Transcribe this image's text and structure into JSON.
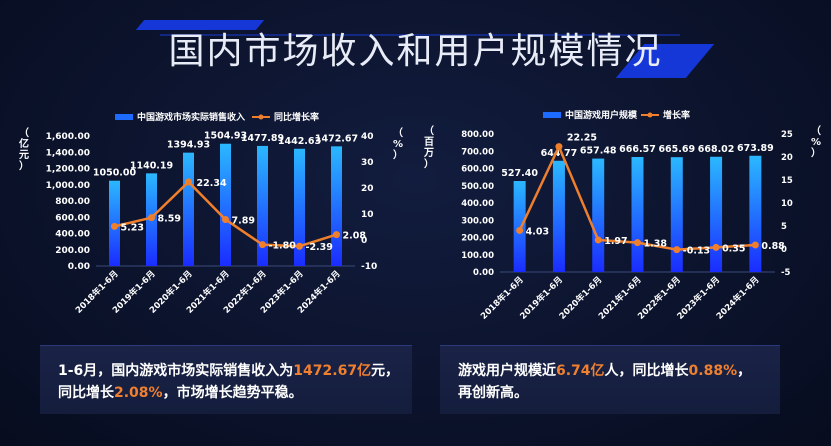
{
  "title": "国内市场收入和用户规模情况",
  "colors": {
    "bar": "#1e6bff",
    "line": "#f07f2c",
    "text": "#ffffff"
  },
  "chart_data": [
    {
      "type": "bar+line",
      "legend": [
        "中国游戏市场实际销售收入",
        "同比增长率"
      ],
      "ylabel_left": "（亿元）",
      "ylabel_right": "（%）",
      "categories": [
        "2018年1-6月",
        "2019年1-6月",
        "2020年1-6月",
        "2021年1-6月",
        "2022年1-6月",
        "2023年1-6月",
        "2024年1-6月"
      ],
      "bar_values": [
        1050.0,
        1140.19,
        1394.93,
        1504.93,
        1477.89,
        1442.63,
        1472.67
      ],
      "bar_labels": [
        "1050.00",
        "1140.19",
        "1394.93",
        "1504.93",
        "1477.89",
        "1442.63",
        "1472.67"
      ],
      "line_values": [
        5.23,
        8.59,
        22.34,
        7.89,
        -1.8,
        -2.39,
        2.08
      ],
      "line_labels": [
        "5.23",
        "8.59",
        "22.34",
        "7.89",
        "-1.80",
        "-2.39",
        "2.08"
      ],
      "ylim_left": [
        0,
        1600
      ],
      "yticks_left": [
        "0.00",
        "200.00",
        "400.00",
        "600.00",
        "800.00",
        "1,000.00",
        "1,200.00",
        "1,400.00",
        "1,600.00"
      ],
      "ylim_right": [
        -10,
        40
      ],
      "yticks_right": [
        "-10",
        "0",
        "10",
        "20",
        "30",
        "40"
      ]
    },
    {
      "type": "bar+line",
      "legend": [
        "中国游戏用户规模",
        "增长率"
      ],
      "ylabel_left": "（百万）",
      "ylabel_right": "（%）",
      "categories": [
        "2018年1-6月",
        "2019年1-6月",
        "2020年1-6月",
        "2021年1-6月",
        "2022年1-6月",
        "2023年1-6月",
        "2024年1-6月"
      ],
      "bar_values": [
        527.4,
        644.77,
        657.48,
        666.57,
        665.69,
        668.02,
        673.89
      ],
      "bar_labels": [
        "527.40",
        "644.77",
        "657.48",
        "666.57",
        "665.69",
        "668.02",
        "673.89"
      ],
      "line_values": [
        4.03,
        22.25,
        1.97,
        1.38,
        -0.13,
        0.35,
        0.88
      ],
      "line_labels": [
        "4.03",
        "22.25",
        "1.97",
        "1.38",
        "-0.13",
        "0.35",
        "0.88"
      ],
      "ylim_left": [
        0,
        800
      ],
      "yticks_left": [
        "0.00",
        "100.00",
        "200.00",
        "300.00",
        "400.00",
        "500.00",
        "600.00",
        "700.00",
        "800.00"
      ],
      "ylim_right": [
        -5,
        25
      ],
      "yticks_right": [
        "-5",
        "0",
        "5",
        "10",
        "15",
        "20",
        "25"
      ]
    }
  ],
  "summary1": {
    "p1": "1-6月，国内游戏市场实际销售收入为",
    "h1": "1472.67亿",
    "p2": "元，",
    "p3": "同比增长",
    "h2": "2.08%",
    "p4": "，市场增长趋势平稳。"
  },
  "summary2": {
    "p1": "游戏用户规模近",
    "h1": "6.74亿",
    "p2": "人，同比增长",
    "h2": "0.88%",
    "p3": "，",
    "p4": "再创新高。"
  }
}
